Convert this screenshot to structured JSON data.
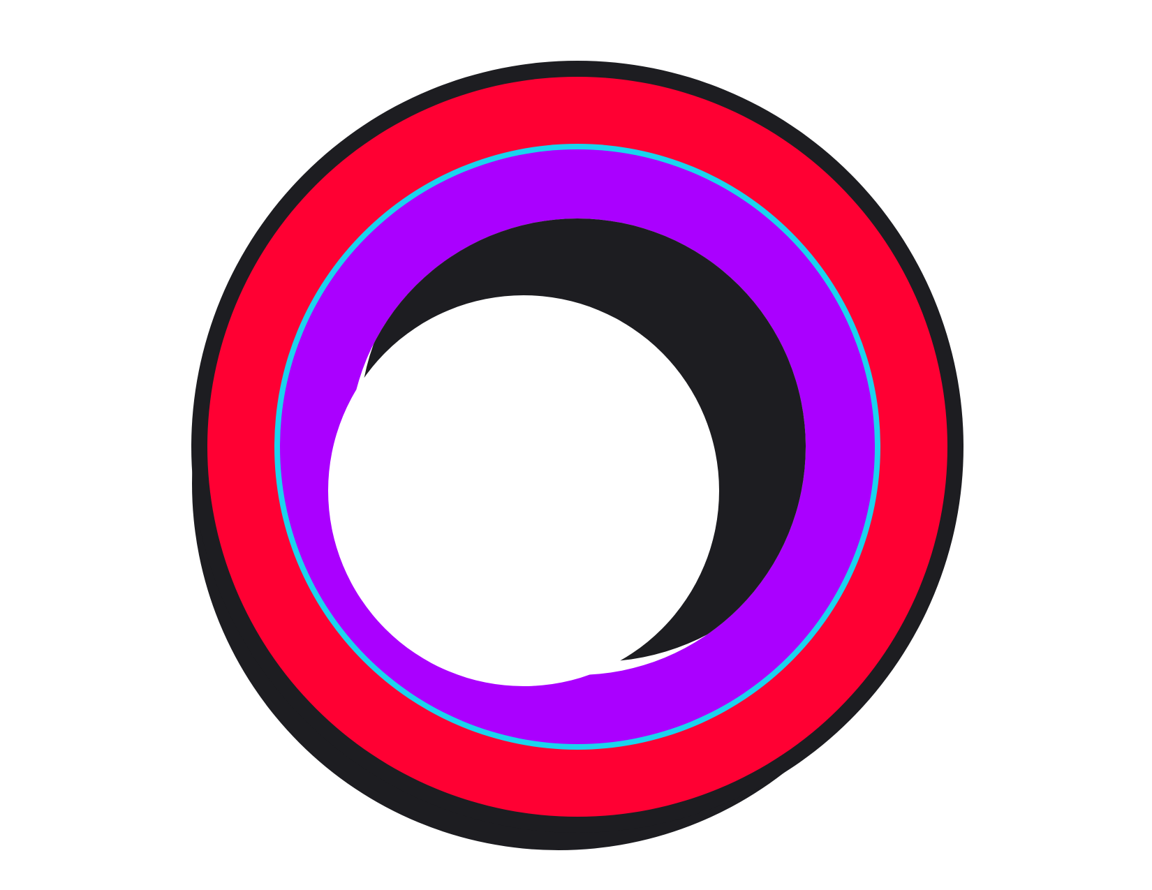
{
  "logo": {
    "icon": "ring-logo-icon",
    "colors": {
      "background": "#ffffff",
      "outline": "#1d1d21",
      "outer_ring": "#ff0033",
      "separator": "#1ad4ee",
      "inner_ring": "#aa00ff",
      "shadow": "#1d1d21",
      "hole": "#ffffff"
    }
  }
}
